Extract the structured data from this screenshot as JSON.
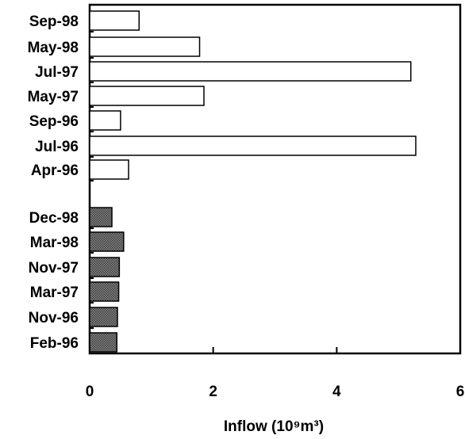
{
  "chart_data": {
    "type": "bar",
    "orientation": "horizontal",
    "xlabel": "Inflow (10⁹m³)",
    "xlim": [
      0,
      6
    ],
    "xticks": [
      "0",
      "2",
      "4",
      "6"
    ],
    "grid": false,
    "legend": "none",
    "groups": [
      {
        "fill": "#ffffff",
        "categories": [
          "Sep-98",
          "May-98",
          "Jul-97",
          "May-97",
          "Sep-96",
          "Jul-96",
          "Apr-96"
        ],
        "values": [
          0.8,
          1.78,
          5.2,
          1.85,
          0.5,
          5.28,
          0.63
        ]
      },
      {
        "fill": "#6a6a6a",
        "categories": [
          "Dec-98",
          "Mar-98",
          "Nov-97",
          "Mar-97",
          "Nov-96",
          "Feb-96"
        ],
        "values": [
          0.36,
          0.55,
          0.48,
          0.47,
          0.45,
          0.44
        ]
      }
    ]
  }
}
